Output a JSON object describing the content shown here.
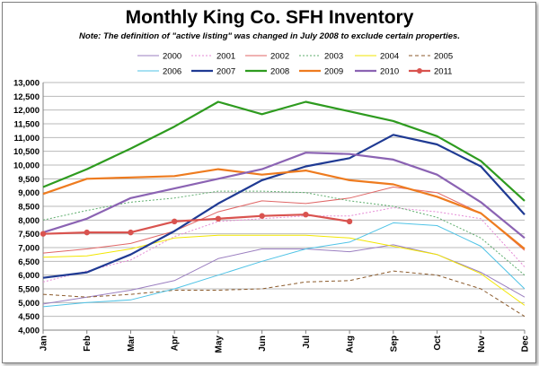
{
  "title": "Monthly King Co. SFH Inventory",
  "subtitle": "Note: The definition of \"active listing\" was changed in July 2008  to exclude certain properties.",
  "chart_data": {
    "type": "line",
    "title": "Monthly King Co. SFH Inventory",
    "subtitle": "Note: The definition of \"active listing\" was changed in July 2008  to exclude certain properties.",
    "categories": [
      "Jan",
      "Feb",
      "Mar",
      "Apr",
      "May",
      "Jun",
      "Jul",
      "Aug",
      "Sep",
      "Oct",
      "Nov",
      "Dec"
    ],
    "ylim": [
      4000,
      13000
    ],
    "yticks": [
      4000,
      4500,
      5000,
      5500,
      6000,
      6500,
      7000,
      7500,
      8000,
      8500,
      9000,
      9500,
      10000,
      10500,
      11000,
      11500,
      12000,
      12500,
      13000
    ],
    "ytick_labels": [
      "4,000",
      "4,500",
      "5,000",
      "5,500",
      "6,000",
      "6,500",
      "7,000",
      "7,500",
      "8,000",
      "8,500",
      "9,000",
      "9,500",
      "10,000",
      "10,500",
      "11,000",
      "11,500",
      "12,000",
      "12,500",
      "13,000"
    ],
    "grid": "horizontal",
    "legend_position": "top",
    "series": [
      {
        "name": "2000",
        "color": "#9b7fc0",
        "style": "solid",
        "width": 1,
        "values": [
          4950,
          5200,
          5450,
          5800,
          6600,
          6950,
          6950,
          6850,
          7100,
          6750,
          6100,
          5200
        ]
      },
      {
        "name": "2001",
        "color": "#e58ad6",
        "style": "dotted",
        "width": 1,
        "values": [
          5750,
          6150,
          6550,
          7400,
          7950,
          8050,
          8150,
          8150,
          8450,
          8300,
          8050,
          6300
        ]
      },
      {
        "name": "2002",
        "color": "#e06666",
        "style": "solid",
        "width": 1,
        "values": [
          6800,
          6950,
          7150,
          7600,
          8300,
          8700,
          8600,
          8800,
          9200,
          9000,
          8250,
          6900
        ]
      },
      {
        "name": "2003",
        "color": "#5fae6e",
        "style": "dotted",
        "width": 1,
        "values": [
          8000,
          8350,
          8650,
          8800,
          9050,
          9050,
          9000,
          8700,
          8500,
          8100,
          7350,
          6000
        ]
      },
      {
        "name": "2004",
        "color": "#f2e600",
        "style": "solid",
        "width": 1,
        "values": [
          6650,
          6700,
          6950,
          7350,
          7450,
          7450,
          7450,
          7350,
          7050,
          6750,
          6050,
          4900
        ]
      },
      {
        "name": "2005",
        "color": "#8b5a2b",
        "style": "dashed",
        "width": 1,
        "values": [
          5300,
          5200,
          5300,
          5450,
          5450,
          5500,
          5750,
          5800,
          6150,
          6000,
          5500,
          4500
        ]
      },
      {
        "name": "2006",
        "color": "#4fc3e6",
        "style": "solid",
        "width": 1,
        "values": [
          4850,
          5000,
          5100,
          5500,
          6000,
          6500,
          6950,
          7200,
          7900,
          7800,
          7050,
          5500
        ]
      },
      {
        "name": "2007",
        "color": "#1f3a93",
        "style": "solid",
        "width": 2.2,
        "values": [
          5900,
          6100,
          6750,
          7600,
          8600,
          9450,
          9950,
          10250,
          11100,
          10750,
          9950,
          8200
        ]
      },
      {
        "name": "2008",
        "color": "#2e9b1f",
        "style": "solid",
        "width": 2.2,
        "values": [
          9200,
          9850,
          10600,
          11400,
          12300,
          11850,
          12300,
          11950,
          11600,
          11050,
          10150,
          8700
        ]
      },
      {
        "name": "2009",
        "color": "#ee7b1f",
        "style": "solid",
        "width": 2.2,
        "values": [
          8950,
          9500,
          9550,
          9600,
          9850,
          9650,
          9800,
          9450,
          9300,
          8850,
          8250,
          6950
        ]
      },
      {
        "name": "2010",
        "color": "#8b63b3",
        "style": "solid",
        "width": 2.2,
        "values": [
          7550,
          8050,
          8800,
          9150,
          9500,
          9850,
          10450,
          10400,
          10200,
          9650,
          8650,
          7350
        ]
      },
      {
        "name": "2011",
        "color": "#d9534f",
        "style": "dashed-markers",
        "width": 2.2,
        "values": [
          7500,
          7550,
          7550,
          7950,
          8050,
          8150,
          8200,
          7950,
          null,
          null,
          null,
          null
        ]
      }
    ]
  }
}
